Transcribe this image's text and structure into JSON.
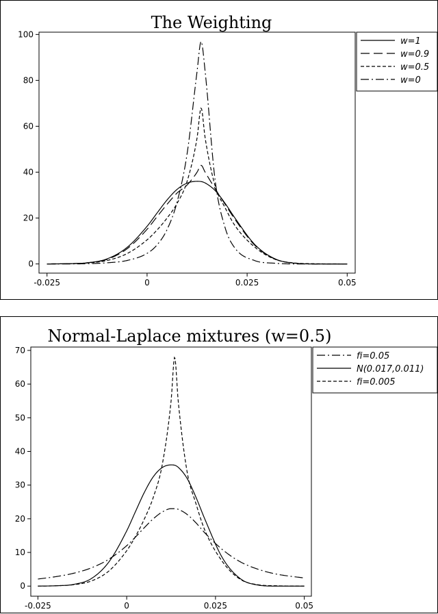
{
  "chart_data": [
    {
      "type": "line",
      "title": "The Weighting",
      "xlabel": "",
      "ylabel": "",
      "xlim": [
        -0.027,
        0.052
      ],
      "ylim": [
        -4,
        101
      ],
      "xticks": [
        -0.025,
        0,
        0.025,
        0.05
      ],
      "xtick_labels": [
        "-0.025",
        "0",
        "0.025",
        "0.05"
      ],
      "yticks": [
        0,
        20,
        40,
        60,
        80,
        100
      ],
      "ytick_labels": [
        "0",
        "20",
        "40",
        "60",
        "80",
        "100"
      ],
      "legend": "right",
      "x": [
        -0.025,
        -0.02,
        -0.015,
        -0.01,
        -0.005,
        0,
        0.0025,
        0.005,
        0.0075,
        0.01,
        0.0125,
        0.0135,
        0.0145,
        0.017,
        0.0195,
        0.022,
        0.027,
        0.032,
        0.037,
        0.042,
        0.05
      ],
      "series": [
        {
          "name": "w=1",
          "dash": "",
          "values": [
            0.0,
            0.1,
            0.5,
            2.2,
            7.2,
            16.4,
            22.2,
            27.9,
            32.5,
            35.2,
            36.0,
            35.9,
            35.3,
            32.0,
            26.4,
            19.9,
            8.3,
            2.2,
            0.3,
            0.0,
            0.0
          ]
        },
        {
          "name": "w=0.9",
          "dash": "13 6",
          "values": [
            0.0,
            0.1,
            0.5,
            2.0,
            6.6,
            15.1,
            20.6,
            26.0,
            30.9,
            34.4,
            40.0,
            43.0,
            40.0,
            32.8,
            26.0,
            19.3,
            8.0,
            2.1,
            0.3,
            0.0,
            0.0
          ]
        },
        {
          "name": "w=0.5",
          "dash": "5 3",
          "values": [
            0.0,
            0.1,
            0.4,
            1.5,
            4.5,
            10.5,
            14.8,
            20.0,
            26.4,
            36.0,
            55.0,
            68.0,
            55.0,
            34.0,
            24.5,
            16.6,
            7.2,
            2.0,
            0.4,
            0.1,
            0.0
          ]
        },
        {
          "name": "w=0",
          "dash": "12 4 2 4",
          "values": [
            0.0,
            0.0,
            0.1,
            0.5,
            1.5,
            4.6,
            8.3,
            15.0,
            27.0,
            48.0,
            84.0,
            97.0,
            84.0,
            36.5,
            15.8,
            6.8,
            1.4,
            0.3,
            0.0,
            0.0,
            0.0
          ]
        }
      ]
    },
    {
      "type": "line",
      "title": "Normal-Laplace mixtures (w=0.5)",
      "xlabel": "",
      "ylabel": "",
      "xlim": [
        -0.027,
        0.052
      ],
      "ylim": [
        -3,
        71
      ],
      "xticks": [
        -0.025,
        0,
        0.025,
        0.05
      ],
      "xtick_labels": [
        "-0.025",
        "0",
        "0.025",
        "0.05"
      ],
      "yticks": [
        0,
        10,
        20,
        30,
        40,
        50,
        60,
        70
      ],
      "ytick_labels": [
        "0",
        "10",
        "20",
        "30",
        "40",
        "50",
        "60",
        "70"
      ],
      "legend": "right",
      "x": [
        -0.025,
        -0.02,
        -0.015,
        -0.01,
        -0.005,
        0,
        0.0025,
        0.005,
        0.0075,
        0.01,
        0.0125,
        0.0135,
        0.0145,
        0.017,
        0.0195,
        0.022,
        0.027,
        0.032,
        0.037,
        0.042,
        0.05
      ],
      "series": [
        {
          "name": "fi=0.05",
          "dash": "12 4 2 4",
          "values": [
            2.1,
            2.8,
            3.8,
            5.4,
            8.0,
            12.0,
            14.6,
            17.4,
            20.0,
            22.0,
            23.0,
            23.0,
            22.8,
            21.3,
            18.8,
            15.8,
            10.8,
            7.2,
            5.0,
            3.6,
            2.4
          ]
        },
        {
          "name": "N(0.017,0.011)",
          "dash": "",
          "values": [
            0.0,
            0.1,
            0.5,
            2.2,
            7.2,
            16.4,
            22.2,
            27.9,
            32.5,
            35.2,
            36.0,
            35.9,
            35.3,
            32.0,
            26.4,
            19.9,
            8.3,
            2.2,
            0.3,
            0.0,
            0.0
          ]
        },
        {
          "name": "fi=0.005",
          "dash": "5 3",
          "values": [
            0.0,
            0.1,
            0.4,
            1.5,
            4.5,
            10.5,
            14.8,
            20.0,
            26.4,
            36.0,
            55.0,
            68.0,
            55.0,
            34.0,
            24.5,
            16.6,
            7.2,
            2.0,
            0.4,
            0.1,
            0.0
          ]
        }
      ]
    }
  ]
}
